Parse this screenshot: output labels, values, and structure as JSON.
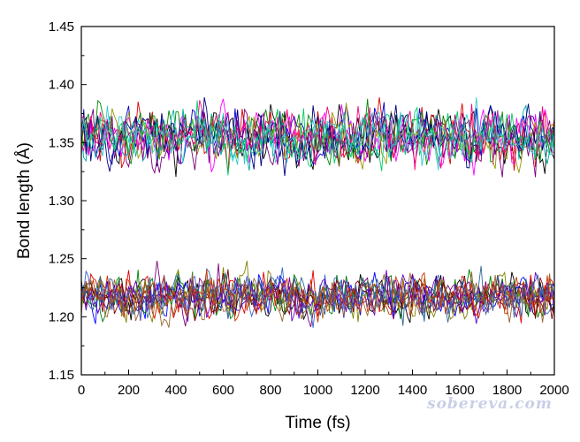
{
  "chart_data": {
    "type": "line",
    "xlabel": "Time (fs)",
    "ylabel": "Bond length (Å)",
    "xlim": [
      0,
      2000
    ],
    "ylim": [
      1.15,
      1.45
    ],
    "x_ticks": [
      0,
      200,
      400,
      600,
      800,
      1000,
      1200,
      1400,
      1600,
      1800,
      2000
    ],
    "y_ticks": [
      1.15,
      1.2,
      1.25,
      1.3,
      1.35,
      1.4,
      1.45
    ],
    "x_tick_labels": [
      "0",
      "200",
      "400",
      "600",
      "800",
      "1000",
      "1200",
      "1400",
      "1600",
      "1800",
      "2000"
    ],
    "y_tick_labels": [
      "1.15",
      "1.20",
      "1.25",
      "1.30",
      "1.35",
      "1.40",
      "1.45"
    ],
    "grid": false,
    "legend": "none",
    "sampling_interval_fs": 10,
    "groups": [
      {
        "mean": 1.355,
        "spread": 0.018,
        "colors": [
          "#000000",
          "#e00000",
          "#0000cc",
          "#008800",
          "#ff00ff",
          "#00aaaa",
          "#999900",
          "#000080",
          "#7b007b",
          "#ff0080",
          "#00cc66",
          "#33cccc"
        ]
      },
      {
        "mean": 1.218,
        "spread": 0.014,
        "colors": [
          "#000000",
          "#e00000",
          "#0000ff",
          "#008000",
          "#7b007b",
          "#808000",
          "#800000",
          "#3366cc",
          "#6600cc",
          "#996633",
          "#336699",
          "#cc3300"
        ]
      }
    ],
    "watermark": "sobereva.com"
  }
}
